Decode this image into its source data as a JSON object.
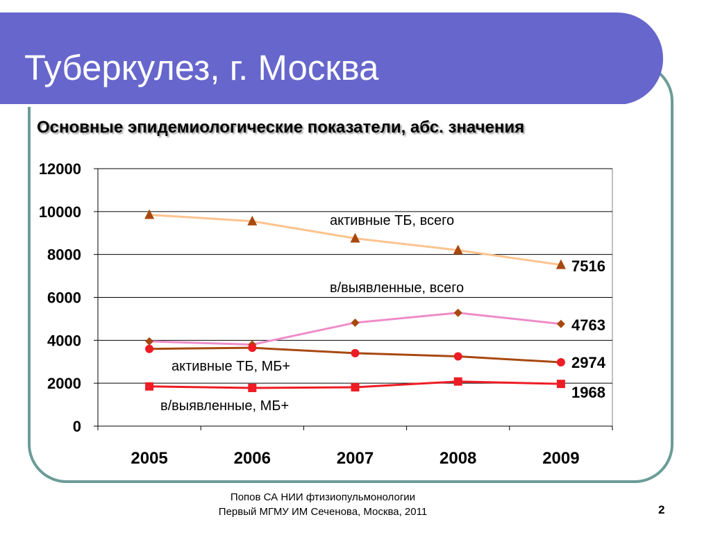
{
  "slide": {
    "title": "Туберкулез, г. Москва",
    "subtitle": "Основные эпидемиологические  показатели, абс. значения",
    "footer_line1": "Попов СА НИИ фтизиопульмонологии",
    "footer_line2": "Первый МГМУ ИМ Сеченова, Москва, 2011",
    "page_number": "2",
    "colors": {
      "title_bar": "#6666cc",
      "frame_border": "#6b9c98"
    }
  },
  "chart_data": {
    "type": "line",
    "x": [
      "2005",
      "2006",
      "2007",
      "2008",
      "2009"
    ],
    "ylim": [
      0,
      12000
    ],
    "yticks": [
      "0",
      "2000",
      "4000",
      "6000",
      "8000",
      "10000",
      "12000"
    ],
    "grid": true,
    "series": [
      {
        "name": "активные ТБ, всего",
        "values": [
          9850,
          9550,
          8750,
          8200,
          7516
        ],
        "end_label": "7516",
        "line_color": "#fcc38e",
        "marker_color": "#a8480f",
        "marker": "triangle"
      },
      {
        "name": "в/выявленные, всего",
        "values": [
          3950,
          3800,
          4820,
          5280,
          4763
        ],
        "end_label": "4763",
        "line_color": "#ee8cc8",
        "marker_color": "#a8480f",
        "marker": "diamond"
      },
      {
        "name": "активные ТБ, МБ+",
        "values": [
          3600,
          3650,
          3400,
          3250,
          2974
        ],
        "end_label": "2974",
        "line_color": "#a84810",
        "marker_color": "#ee1c24",
        "marker": "circle"
      },
      {
        "name": "в/выявленные, МБ+",
        "values": [
          1850,
          1780,
          1810,
          2080,
          1968
        ],
        "end_label": "1968",
        "line_color": "#ee1c24",
        "marker_color": "#ee1c24",
        "marker": "square"
      }
    ]
  }
}
